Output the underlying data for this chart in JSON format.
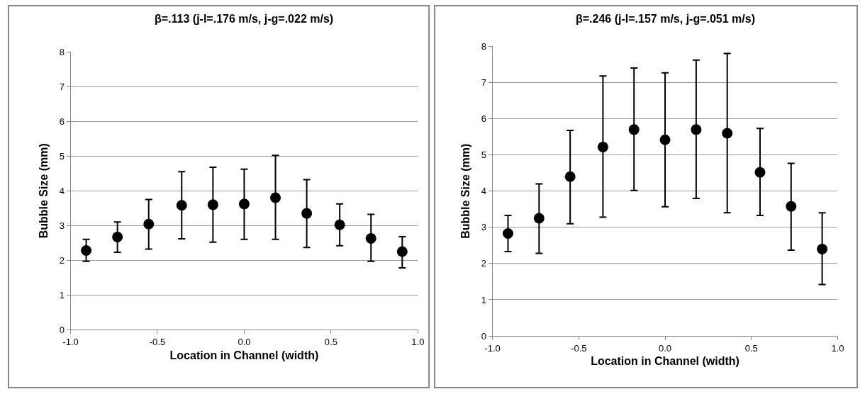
{
  "chart_data": [
    {
      "type": "scatter",
      "title": "β=.113 (j-l=.176 m/s, j-g=.022 m/s)",
      "xlabel": "Location in Channel (width)",
      "ylabel": "Bubble Size (mm)",
      "x": [
        -0.91,
        -0.73,
        -0.55,
        -0.36,
        -0.18,
        0,
        0.18,
        0.36,
        0.55,
        0.73,
        0.91
      ],
      "series": [
        {
          "color": "#000000",
          "values": [
            2.28,
            2.67,
            3.04,
            3.58,
            3.6,
            3.62,
            3.8,
            3.35,
            3.02,
            2.63,
            2.25
          ],
          "errors": [
            [
              1.97,
              2.6
            ],
            [
              2.23,
              3.1
            ],
            [
              2.32,
              3.75
            ],
            [
              2.62,
              4.55
            ],
            [
              2.52,
              4.68
            ],
            [
              2.6,
              4.62
            ],
            [
              2.6,
              5.02
            ],
            [
              2.37,
              4.32
            ],
            [
              2.42,
              3.62
            ],
            [
              1.97,
              3.32
            ],
            [
              1.78,
              2.68
            ]
          ]
        }
      ],
      "xlim": [
        -1,
        1
      ],
      "xticks": [
        {
          "value": -1,
          "label": "-1.0"
        },
        {
          "value": -0.5,
          "label": "-0.5"
        },
        {
          "value": 0,
          "label": "0.0"
        },
        {
          "value": 0.5,
          "label": "0.5"
        },
        {
          "value": 1,
          "label": "1.0"
        }
      ],
      "ylim": [
        0,
        8
      ],
      "yticks": [
        0,
        1,
        2,
        3,
        4,
        5,
        6,
        7,
        8
      ],
      "grid": "y",
      "marker": "circle"
    },
    {
      "type": "scatter",
      "title": "β=.246 (j-l=.157 m/s, j-g=.051 m/s)",
      "xlabel": "Location in Channel (width)",
      "ylabel": "Bubble Size (mm)",
      "x": [
        -0.91,
        -0.73,
        -0.55,
        -0.36,
        -0.18,
        0,
        0.18,
        0.36,
        0.55,
        0.73,
        0.91
      ],
      "series": [
        {
          "color": "#000000",
          "values": [
            2.83,
            3.25,
            4.4,
            5.22,
            5.7,
            5.42,
            5.7,
            5.6,
            4.52,
            3.58,
            2.4
          ],
          "errors": [
            [
              2.33,
              3.33
            ],
            [
              2.28,
              4.2
            ],
            [
              3.1,
              5.68
            ],
            [
              3.28,
              7.18
            ],
            [
              4.02,
              7.4
            ],
            [
              3.57,
              7.27
            ],
            [
              3.8,
              7.62
            ],
            [
              3.4,
              7.8
            ],
            [
              3.33,
              5.73
            ],
            [
              2.37,
              4.77
            ],
            [
              1.42,
              3.4
            ]
          ]
        }
      ],
      "xlim": [
        -1,
        1
      ],
      "xticks": [
        {
          "value": -1,
          "label": "-1.0"
        },
        {
          "value": -0.5,
          "label": "-0.5"
        },
        {
          "value": 0,
          "label": "0.0"
        },
        {
          "value": 0.5,
          "label": "0.5"
        },
        {
          "value": 1,
          "label": "1.0"
        }
      ],
      "ylim": [
        0,
        8
      ],
      "yticks": [
        0,
        1,
        2,
        3,
        4,
        5,
        6,
        7,
        8
      ],
      "grid": "y",
      "marker": "circle"
    }
  ]
}
